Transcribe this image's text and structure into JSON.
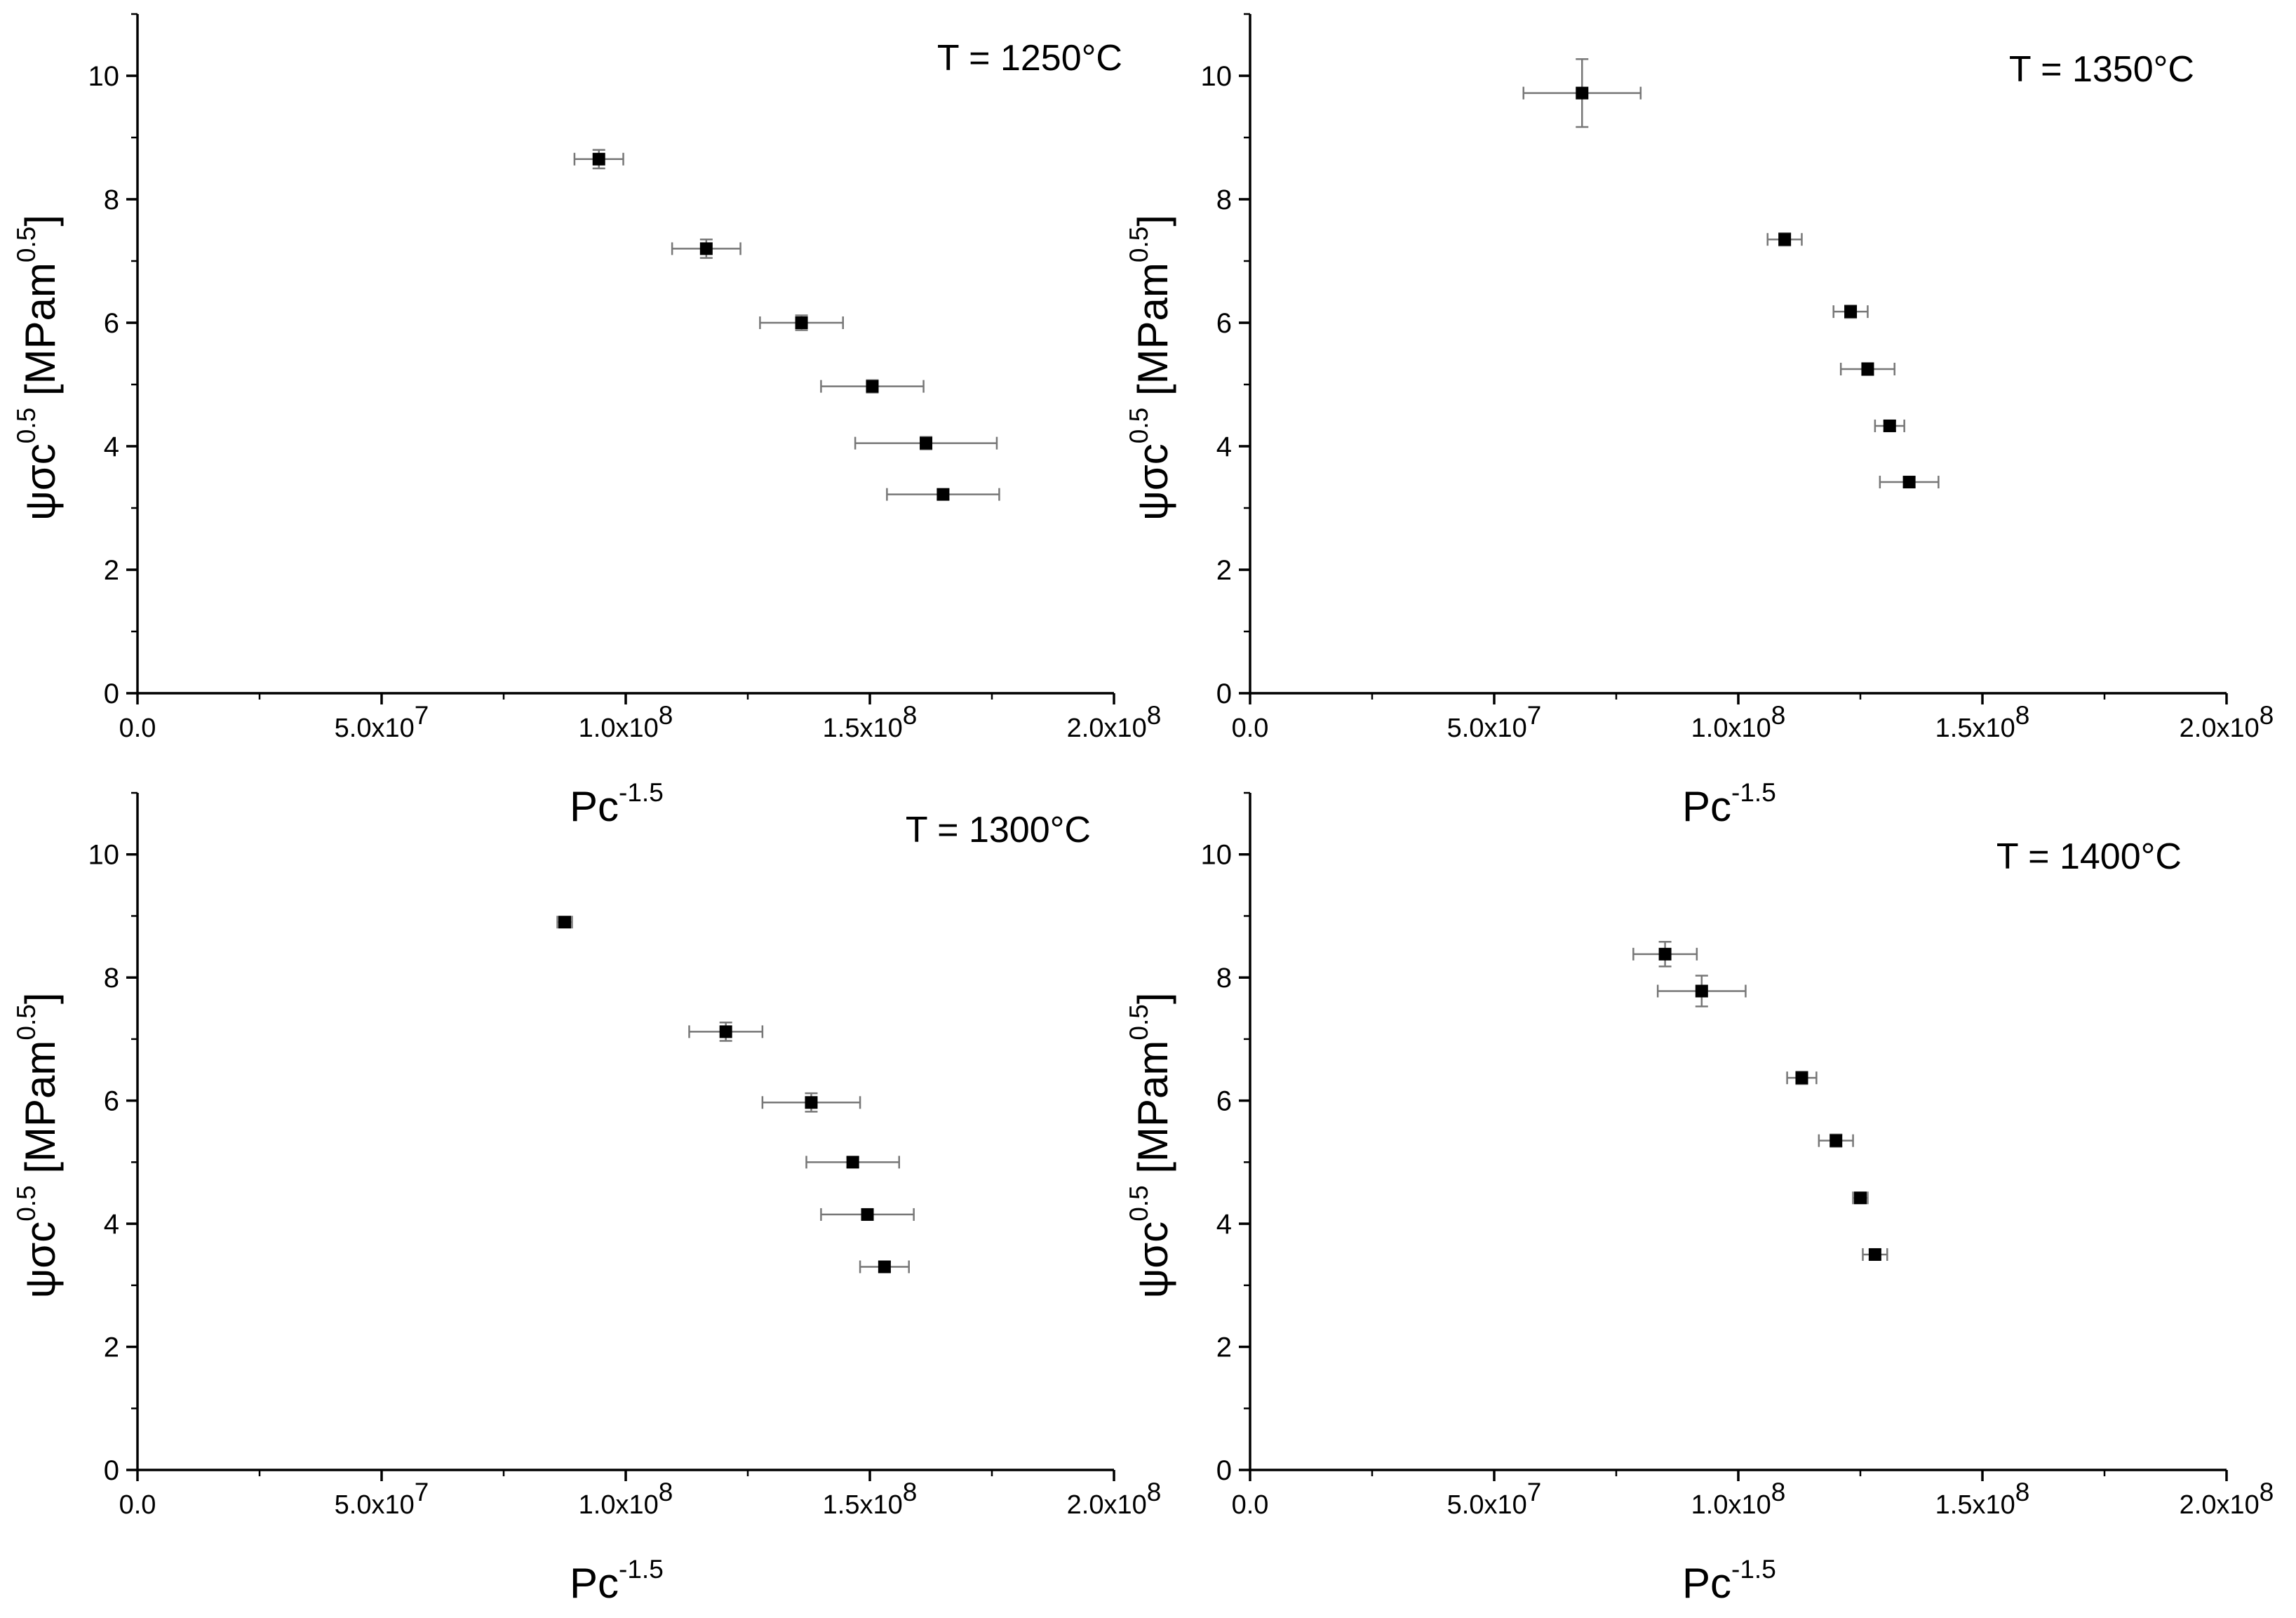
{
  "chart_data": [
    {
      "type": "scatter",
      "title": "T = 1250°C",
      "xlabel": {
        "base": "Pc",
        "sup": "-1.5"
      },
      "ylabel": {
        "base": "ψσc",
        "sup": "0.5",
        "unit_base": " [MPam",
        "unit_sup": "0.5",
        "unit_end": "]"
      },
      "xlim": [
        0,
        200000000
      ],
      "ylim": [
        0,
        11
      ],
      "xticks": [
        {
          "value": 0,
          "label": "0.0",
          "exp": ""
        },
        {
          "value": 50000000,
          "label": "5.0x10",
          "exp": "7"
        },
        {
          "value": 100000000,
          "label": "1.0x10",
          "exp": "8"
        },
        {
          "value": 150000000,
          "label": "1.5x10",
          "exp": "8"
        },
        {
          "value": 200000000,
          "label": "2.0x10",
          "exp": "8"
        }
      ],
      "yticks": [
        0,
        2,
        4,
        6,
        8,
        10
      ],
      "points": [
        {
          "x": 94500000,
          "y": 8.65,
          "xerr": 5000000,
          "yerr": 0.15
        },
        {
          "x": 116500000,
          "y": 7.2,
          "xerr": 7000000,
          "yerr": 0.15
        },
        {
          "x": 136000000,
          "y": 6.0,
          "xerr": 8500000,
          "yerr": 0.12
        },
        {
          "x": 150500000,
          "y": 4.97,
          "xerr": 10500000,
          "yerr": 0.1
        },
        {
          "x": 161500000,
          "y": 4.05,
          "xerr": 14500000,
          "yerr": 0.1
        },
        {
          "x": 165000000,
          "y": 3.22,
          "xerr": 11500000,
          "yerr": 0.08
        }
      ]
    },
    {
      "type": "scatter",
      "title": "T = 1350°C",
      "xlabel": {
        "base": "Pc",
        "sup": "-1.5"
      },
      "ylabel": {
        "base": "ψσc",
        "sup": "0.5",
        "unit_base": " [MPam",
        "unit_sup": "0.5",
        "unit_end": "]"
      },
      "xlim": [
        0,
        200000000
      ],
      "ylim": [
        0,
        11
      ],
      "xticks": [
        {
          "value": 0,
          "label": "0.0",
          "exp": ""
        },
        {
          "value": 50000000,
          "label": "5.0x10",
          "exp": "7"
        },
        {
          "value": 100000000,
          "label": "1.0x10",
          "exp": "8"
        },
        {
          "value": 150000000,
          "label": "1.5x10",
          "exp": "8"
        },
        {
          "value": 200000000,
          "label": "2.0x10",
          "exp": "8"
        }
      ],
      "yticks": [
        0,
        2,
        4,
        6,
        8,
        10
      ],
      "points": [
        {
          "x": 68000000,
          "y": 9.72,
          "xerr": 12000000,
          "yerr": 0.55
        },
        {
          "x": 109500000,
          "y": 7.35,
          "xerr": 3500000,
          "yerr": 0.1
        },
        {
          "x": 123000000,
          "y": 6.18,
          "xerr": 3500000,
          "yerr": 0.1
        },
        {
          "x": 126500000,
          "y": 5.25,
          "xerr": 5500000,
          "yerr": 0.1
        },
        {
          "x": 131000000,
          "y": 4.33,
          "xerr": 3000000,
          "yerr": 0.08
        },
        {
          "x": 135000000,
          "y": 3.42,
          "xerr": 6000000,
          "yerr": 0.08
        }
      ]
    },
    {
      "type": "scatter",
      "title": "T = 1300°C",
      "xlabel": {
        "base": "Pc",
        "sup": "-1.5"
      },
      "ylabel": {
        "base": "ψσc",
        "sup": "0.5",
        "unit_base": " [MPam",
        "unit_sup": "0.5",
        "unit_end": "]"
      },
      "xlim": [
        0,
        200000000
      ],
      "ylim": [
        0,
        11
      ],
      "xticks": [
        {
          "value": 0,
          "label": "0.0",
          "exp": ""
        },
        {
          "value": 50000000,
          "label": "5.0x10",
          "exp": "7"
        },
        {
          "value": 100000000,
          "label": "1.0x10",
          "exp": "8"
        },
        {
          "value": 150000000,
          "label": "1.5x10",
          "exp": "8"
        },
        {
          "value": 200000000,
          "label": "2.0x10",
          "exp": "8"
        }
      ],
      "yticks": [
        0,
        2,
        4,
        6,
        8,
        10
      ],
      "points": [
        {
          "x": 87500000,
          "y": 8.9,
          "xerr": 1500000,
          "yerr": 0.07
        },
        {
          "x": 120500000,
          "y": 7.12,
          "xerr": 7500000,
          "yerr": 0.15
        },
        {
          "x": 138000000,
          "y": 5.97,
          "xerr": 10000000,
          "yerr": 0.15
        },
        {
          "x": 146500000,
          "y": 5.0,
          "xerr": 9500000,
          "yerr": 0.08
        },
        {
          "x": 149500000,
          "y": 4.15,
          "xerr": 9500000,
          "yerr": 0.08
        },
        {
          "x": 153000000,
          "y": 3.3,
          "xerr": 5000000,
          "yerr": 0.08
        }
      ]
    },
    {
      "type": "scatter",
      "title": "T = 1400°C",
      "xlabel": {
        "base": "Pc",
        "sup": "-1.5"
      },
      "ylabel": {
        "base": "ψσc",
        "sup": "0.5",
        "unit_base": " [MPam",
        "unit_sup": "0.5",
        "unit_end": "]"
      },
      "xlim": [
        0,
        200000000
      ],
      "ylim": [
        0,
        11
      ],
      "xticks": [
        {
          "value": 0,
          "label": "0.0",
          "exp": ""
        },
        {
          "value": 50000000,
          "label": "5.0x10",
          "exp": "7"
        },
        {
          "value": 100000000,
          "label": "1.0x10",
          "exp": "8"
        },
        {
          "value": 150000000,
          "label": "1.5x10",
          "exp": "8"
        },
        {
          "value": 200000000,
          "label": "2.0x10",
          "exp": "8"
        }
      ],
      "yticks": [
        0,
        2,
        4,
        6,
        8,
        10
      ],
      "points": [
        {
          "x": 85000000,
          "y": 8.38,
          "xerr": 6500000,
          "yerr": 0.2
        },
        {
          "x": 92500000,
          "y": 7.78,
          "xerr": 9000000,
          "yerr": 0.25
        },
        {
          "x": 113000000,
          "y": 6.37,
          "xerr": 3000000,
          "yerr": 0.1
        },
        {
          "x": 120000000,
          "y": 5.35,
          "xerr": 3500000,
          "yerr": 0.1
        },
        {
          "x": 125000000,
          "y": 4.42,
          "xerr": 1500000,
          "yerr": 0.08
        },
        {
          "x": 128000000,
          "y": 3.5,
          "xerr": 2500000,
          "yerr": 0.08
        }
      ]
    }
  ]
}
